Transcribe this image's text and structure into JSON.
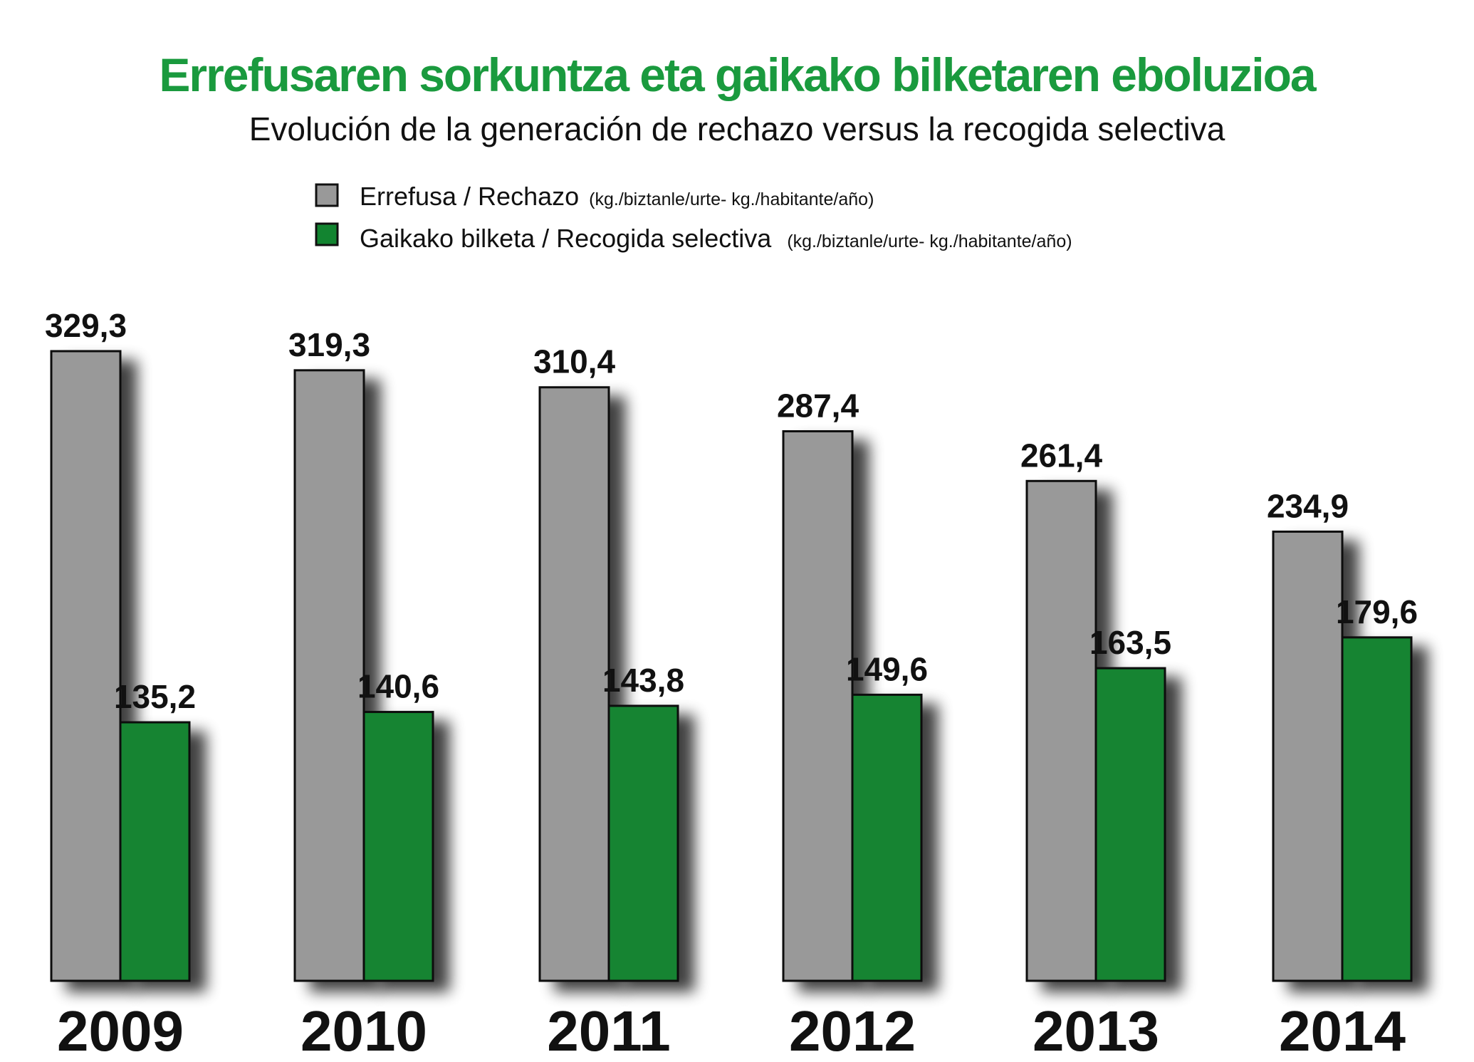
{
  "chart_data": {
    "type": "bar",
    "title": "Errefusaren sorkuntza eta gaikako bilketaren eboluzioa",
    "subtitle": "Evolución de la generación de rechazo versus la recogida selectiva",
    "categories": [
      "2009",
      "2010",
      "2011",
      "2012",
      "2013",
      "2014"
    ],
    "series": [
      {
        "name": "Errefusa / Rechazo",
        "unit": "(kg./biztanle/urte- kg./habitante/año)",
        "color": "#999999",
        "values": [
          329.3,
          319.3,
          310.4,
          287.4,
          261.4,
          234.9
        ],
        "labels": [
          "329,3",
          "319,3",
          "310,4",
          "287,4",
          "261,4",
          "234,9"
        ]
      },
      {
        "name": "Gaikako bilketa / Recogida selectiva",
        "unit": "(kg./biztanle/urte- kg./habitante/año)",
        "color": "#128430",
        "values": [
          135.2,
          140.6,
          143.8,
          149.6,
          163.5,
          179.6
        ],
        "labels": [
          "135,2",
          "140,6",
          "143,8",
          "149,6",
          "163,5",
          "179,6"
        ]
      }
    ],
    "ylim": [
      0,
      329.3
    ],
    "grid": false,
    "legend_position": "top-center",
    "colors": {
      "title": "#1a9a3e",
      "rechazo": "#999999",
      "selectiva": "#128430",
      "outline": "#111111"
    }
  }
}
